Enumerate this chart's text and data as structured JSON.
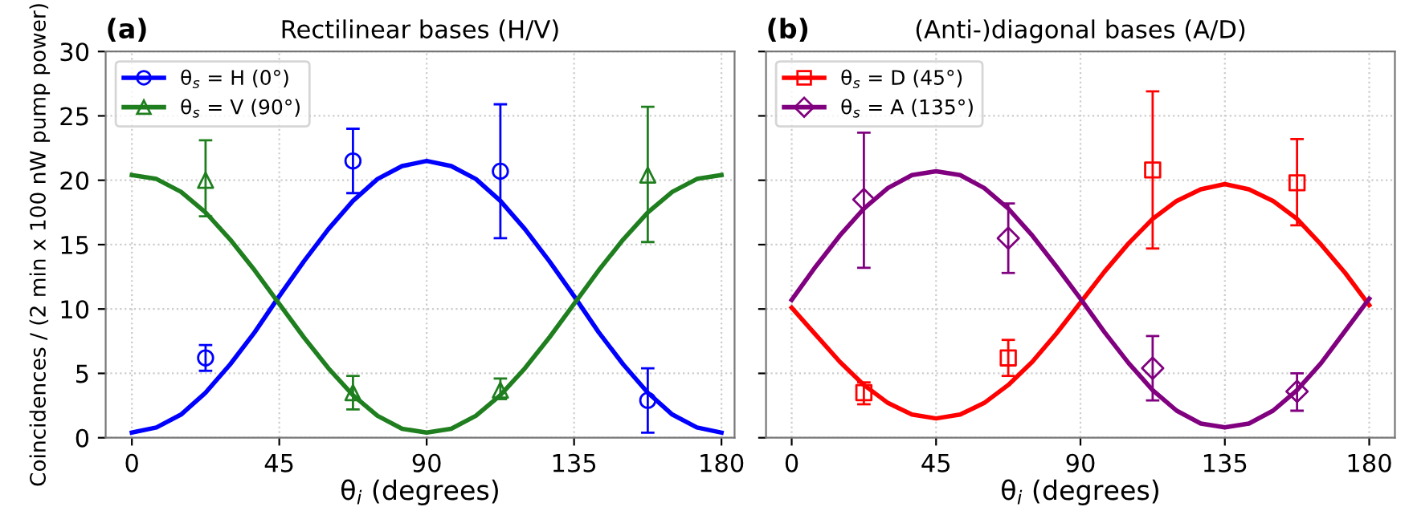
{
  "chart_data": [
    {
      "type": "line",
      "title": "Rectilinear bases (H/V)",
      "annotations": [
        "(a)"
      ],
      "xlabel": "θ$_{i}$ (degrees)",
      "ylabel": "Coincidences / (2 min x 100 nW pump power)",
      "xlim": [
        -8,
        184
      ],
      "ylim": [
        0,
        30
      ],
      "xticks": [
        0,
        45,
        90,
        135,
        180
      ],
      "yticks": [
        0,
        5,
        10,
        15,
        20,
        25,
        30
      ],
      "grid": true,
      "legend": "top left",
      "series": [
        {
          "type": "scatter",
          "name": "θ$_{s}$ = H (0°)",
          "color": "#0000ff",
          "marker": "circle",
          "x": [
            22.5,
            67.5,
            112.5,
            157.5
          ],
          "values": [
            6.2,
            21.5,
            20.7,
            2.9
          ],
          "errors": [
            [
              5.2,
              7.2
            ],
            [
              19,
              24
            ],
            [
              15.5,
              25.9
            ],
            [
              0.4,
              5.4
            ]
          ]
        },
        {
          "type": "scatter",
          "name": "θ$_{s}$ = V (90°)",
          "color": "#1f7f1f",
          "marker": "triangle",
          "x": [
            22.5,
            67.5,
            112.5,
            157.5
          ],
          "values": [
            20,
            3.5,
            3.7,
            20.4
          ],
          "errors": [
            [
              17.2,
              23.1
            ],
            [
              2.2,
              4.8
            ],
            [
              3.0,
              4.6
            ],
            [
              15.2,
              25.7
            ]
          ]
        },
        {
          "type": "line",
          "color": "#0000ff",
          "x": [
            0,
            7.5,
            15,
            22.5,
            30,
            37.5,
            45,
            52.5,
            60,
            67.5,
            75,
            82.5,
            90,
            97.5,
            105,
            112.5,
            120,
            127.5,
            135,
            142.5,
            150,
            157.5,
            165,
            172.5,
            180
          ],
          "values": [
            0.4,
            0.8,
            1.8,
            3.5,
            5.7,
            8.2,
            11.0,
            13.7,
            16.2,
            18.4,
            20.1,
            21.1,
            21.5,
            21.1,
            20.1,
            18.4,
            16.2,
            13.7,
            11.0,
            8.2,
            5.7,
            3.5,
            1.8,
            0.8,
            0.4
          ]
        },
        {
          "type": "line",
          "color": "#1f7f1f",
          "x": [
            0,
            7.5,
            15,
            22.5,
            30,
            37.5,
            45,
            52.5,
            60,
            67.5,
            75,
            82.5,
            90,
            97.5,
            105,
            112.5,
            120,
            127.5,
            135,
            142.5,
            150,
            157.5,
            165,
            172.5,
            180
          ],
          "values": [
            20.4,
            20.1,
            19.1,
            17.5,
            15.4,
            13.0,
            10.4,
            7.8,
            5.4,
            3.3,
            1.7,
            0.7,
            0.4,
            0.7,
            1.7,
            3.3,
            5.4,
            7.8,
            10.4,
            13.0,
            15.4,
            17.5,
            19.1,
            20.1,
            20.4
          ]
        }
      ]
    },
    {
      "type": "line",
      "title": "(Anti-)diagonal bases (A/D)",
      "annotations": [
        "(b)"
      ],
      "xlabel": "θ$_{i}$ (degrees)",
      "xlim": [
        -8,
        188
      ],
      "ylim": [
        0,
        30
      ],
      "xticks": [
        0,
        45,
        90,
        135,
        180
      ],
      "yticks": [
        0,
        5,
        10,
        15,
        20,
        25,
        30
      ],
      "tick_labels": "x",
      "grid": true,
      "legend": "top left",
      "series": [
        {
          "type": "scatter",
          "name": "θ$_{s}$ = D (45°)",
          "color": "#ff0000",
          "marker": "square",
          "x": [
            22.5,
            67.5,
            112.5,
            157.5
          ],
          "values": [
            3.5,
            6.2,
            20.8,
            19.8
          ],
          "errors": [
            [
              2.6,
              4.3
            ],
            [
              4.8,
              7.6
            ],
            [
              14.7,
              26.9
            ],
            [
              16.5,
              23.2
            ]
          ]
        },
        {
          "type": "scatter",
          "name": "θ$_{s}$ = A (135°)",
          "color": "#800080",
          "marker": "diamond",
          "x": [
            22.5,
            67.5,
            112.5,
            157.5
          ],
          "values": [
            18.5,
            15.5,
            5.4,
            3.6
          ],
          "errors": [
            [
              13.2,
              23.7
            ],
            [
              12.8,
              18.2
            ],
            [
              2.9,
              7.9
            ],
            [
              2.1,
              5.0
            ]
          ]
        },
        {
          "type": "line",
          "color": "#ff0000",
          "x": [
            0,
            7.5,
            15,
            22.5,
            30,
            37.5,
            45,
            52.5,
            60,
            67.5,
            75,
            82.5,
            90,
            97.5,
            105,
            112.5,
            120,
            127.5,
            135,
            142.5,
            150,
            157.5,
            165,
            172.5,
            180
          ],
          "values": [
            10.1,
            8.0,
            5.9,
            4.1,
            2.7,
            1.8,
            1.5,
            1.8,
            2.7,
            4.1,
            5.9,
            8.1,
            10.5,
            12.9,
            15.1,
            17.0,
            18.4,
            19.3,
            19.7,
            19.3,
            18.4,
            17.0,
            15.0,
            12.8,
            10.3
          ]
        },
        {
          "type": "line",
          "color": "#800080",
          "x": [
            0,
            7.5,
            15,
            22.5,
            30,
            37.5,
            45,
            52.5,
            60,
            67.5,
            75,
            82.5,
            90,
            97.5,
            105,
            112.5,
            120,
            127.5,
            135,
            142.5,
            150,
            157.5,
            165,
            172.5,
            180
          ],
          "values": [
            10.7,
            13.3,
            15.7,
            17.8,
            19.4,
            20.4,
            20.7,
            20.4,
            19.4,
            17.8,
            15.7,
            13.3,
            10.8,
            8.2,
            5.8,
            3.7,
            2.1,
            1.1,
            0.8,
            1.1,
            2.1,
            3.7,
            5.8,
            8.3,
            10.8
          ]
        }
      ]
    }
  ]
}
